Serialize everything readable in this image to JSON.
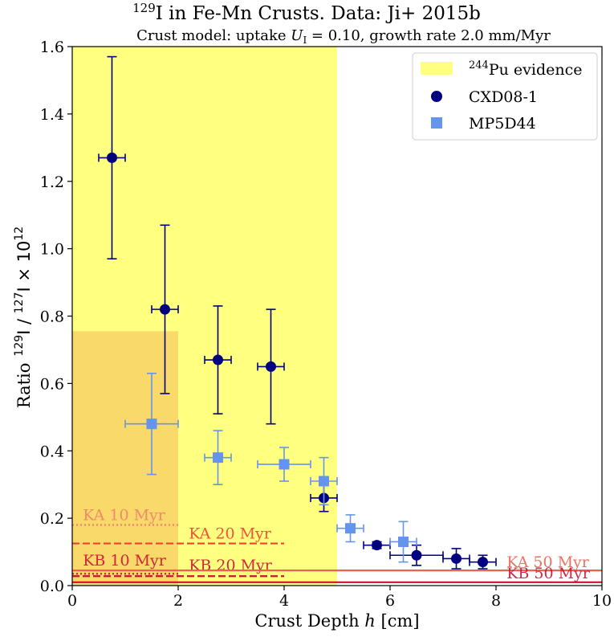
{
  "chart_data": {
    "type": "scatter",
    "title_sup": "129",
    "title_main": "I in Fe-Mn Crusts. Data: Ji+ 2015b",
    "subtitle_pre": "Crust model: uptake ",
    "subtitle_var": "U",
    "subtitle_sub": "I",
    "subtitle_post": " = 0.10, growth rate 2.0 mm/Myr",
    "xlabel_pre": "Crust Depth ",
    "xlabel_var": "h",
    "xlabel_post": " [cm]",
    "ylabel": {
      "word": "Ratio",
      "sup1": "129",
      "mid": "I / ",
      "sup2": "127",
      "end": "I  × 10",
      "sup3": "12"
    },
    "xlim": [
      0,
      10
    ],
    "ylim": [
      0,
      1.6
    ],
    "xticks": [
      "0",
      "2",
      "4",
      "6",
      "8",
      "10"
    ],
    "yticks": [
      "0.0",
      "0.2",
      "0.4",
      "0.6",
      "0.8",
      "1.0",
      "1.2",
      "1.4",
      "1.6"
    ],
    "legend_placement": "top-right",
    "legend": [
      {
        "key": "pu",
        "sup": "244",
        "label": "Pu evidence"
      },
      {
        "key": "cxd",
        "sup": "",
        "label": "CXD08-1"
      },
      {
        "key": "mp",
        "sup": "",
        "label": "MP5D44"
      }
    ],
    "regions": [
      {
        "name": "pu-evidence-band",
        "x": [
          0,
          5
        ],
        "y": [
          0,
          1.6
        ],
        "color": "#ffff80"
      },
      {
        "name": "overlap-region",
        "x": [
          0,
          2
        ],
        "y": [
          0,
          0.755
        ],
        "color": "#f8d96a"
      }
    ],
    "series": [
      {
        "name": "CXD08-1",
        "marker": "circle",
        "color": "#000080",
        "points": [
          {
            "x": 0.75,
            "xerr": 0.25,
            "y": 1.27,
            "ylo": 0.97,
            "yhi": 1.57
          },
          {
            "x": 1.75,
            "xerr": 0.25,
            "y": 0.82,
            "ylo": 0.57,
            "yhi": 1.07
          },
          {
            "x": 2.75,
            "xerr": 0.25,
            "y": 0.67,
            "ylo": 0.51,
            "yhi": 0.83
          },
          {
            "x": 3.75,
            "xerr": 0.25,
            "y": 0.65,
            "ylo": 0.48,
            "yhi": 0.82
          },
          {
            "x": 4.75,
            "xerr": 0.25,
            "y": 0.26,
            "ylo": 0.22,
            "yhi": 0.3
          },
          {
            "x": 5.75,
            "xerr": 0.25,
            "y": 0.12,
            "ylo": 0.11,
            "yhi": 0.13
          },
          {
            "x": 6.5,
            "xerr": 0.5,
            "y": 0.09,
            "ylo": 0.06,
            "yhi": 0.12
          },
          {
            "x": 7.25,
            "xerr": 0.25,
            "y": 0.08,
            "ylo": 0.05,
            "yhi": 0.11
          },
          {
            "x": 7.75,
            "xerr": 0.25,
            "y": 0.07,
            "ylo": 0.05,
            "yhi": 0.09
          }
        ]
      },
      {
        "name": "MP5D44",
        "marker": "square",
        "color": "#6495ed",
        "points": [
          {
            "x": 1.5,
            "xerr": 0.5,
            "y": 0.48,
            "ylo": 0.33,
            "yhi": 0.63
          },
          {
            "x": 2.75,
            "xerr": 0.25,
            "y": 0.38,
            "ylo": 0.3,
            "yhi": 0.46
          },
          {
            "x": 4.0,
            "xerr": 0.5,
            "y": 0.36,
            "ylo": 0.31,
            "yhi": 0.41
          },
          {
            "x": 4.75,
            "xerr": 0.25,
            "y": 0.31,
            "ylo": 0.24,
            "yhi": 0.38
          },
          {
            "x": 5.25,
            "xerr": 0.25,
            "y": 0.17,
            "ylo": 0.13,
            "yhi": 0.21
          },
          {
            "x": 6.25,
            "xerr": 0.25,
            "y": 0.13,
            "ylo": 0.07,
            "yhi": 0.19
          }
        ]
      }
    ],
    "model_lines": [
      {
        "label": "KA 10 Myr",
        "x": [
          0,
          2
        ],
        "y": 0.18,
        "style": "dotted",
        "color": "#f08070",
        "label_x": 0.2,
        "label_y": 0.19
      },
      {
        "label": "KA 20 Myr",
        "x": [
          0,
          4
        ],
        "y": 0.125,
        "style": "dashed",
        "color": "#f04030",
        "label_x": 2.2,
        "label_y": 0.135
      },
      {
        "label": "KB 10 Myr",
        "x": [
          0,
          2
        ],
        "y": 0.035,
        "style": "dotted",
        "color": "#cc1133",
        "label_x": 0.2,
        "label_y": 0.055
      },
      {
        "label": "KB 20 Myr",
        "x": [
          0,
          4
        ],
        "y": 0.028,
        "style": "dashed",
        "color": "#cc1133",
        "label_x": 2.2,
        "label_y": 0.04
      },
      {
        "label": "KA 50 Myr",
        "x": [
          0,
          10
        ],
        "y": 0.045,
        "style": "solid",
        "color": "#f06050",
        "label_x": 8.2,
        "label_y": 0.05
      },
      {
        "label": "KB 50 Myr",
        "x": [
          0,
          10
        ],
        "y": 0.01,
        "style": "solid",
        "color": "#cc1133",
        "label_x": 8.2,
        "label_y": 0.017
      }
    ]
  }
}
